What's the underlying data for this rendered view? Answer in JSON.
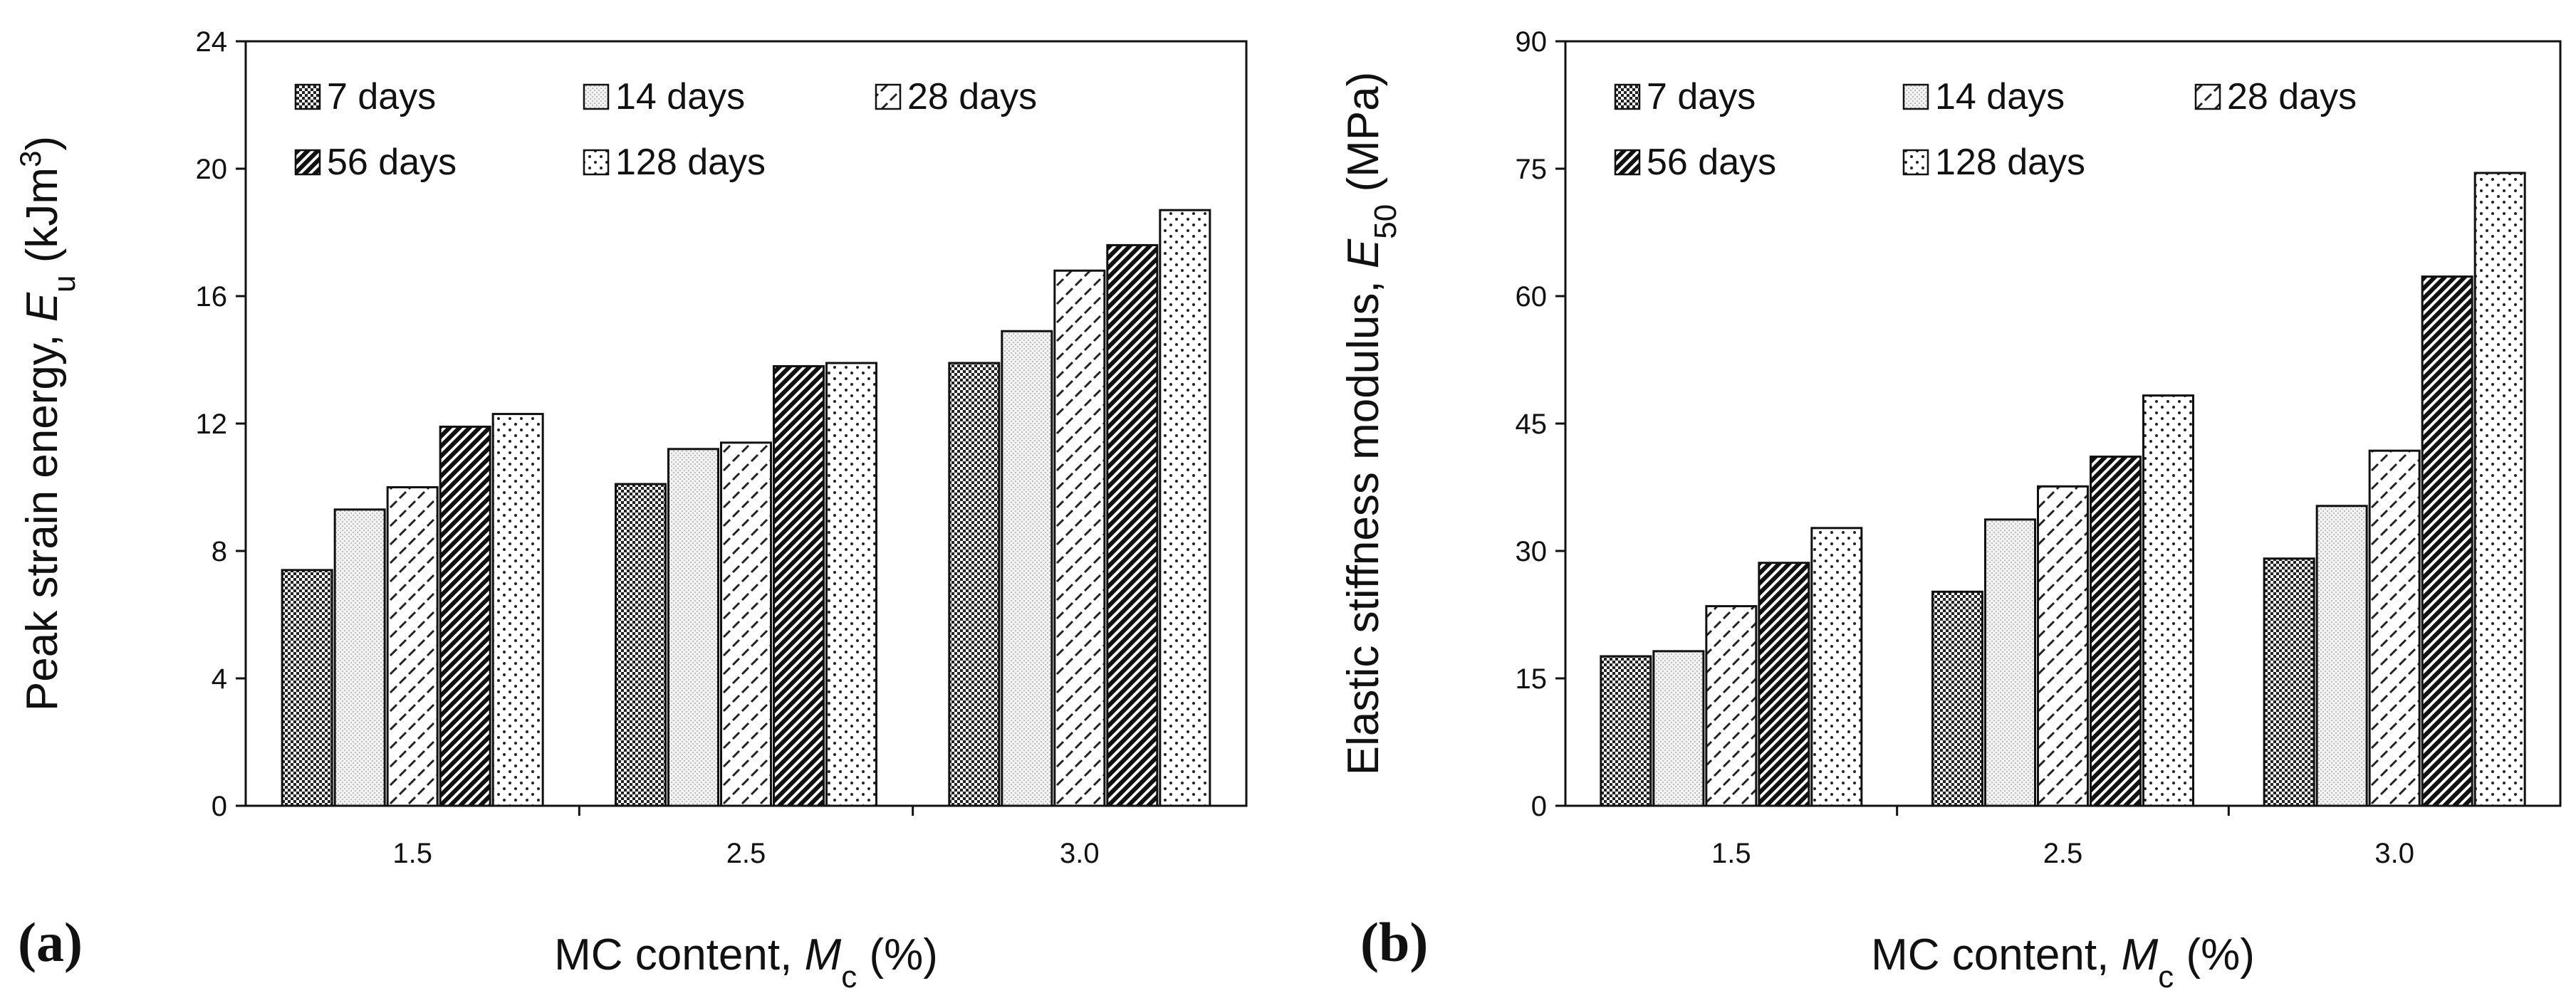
{
  "chart_data": [
    {
      "type": "bar",
      "panel_label": "(a)",
      "categories": [
        "1.5",
        "2.5",
        "3.0"
      ],
      "series": [
        {
          "name": "7 days",
          "values": [
            7.4,
            10.1,
            13.9
          ]
        },
        {
          "name": "14 days",
          "values": [
            9.3,
            11.2,
            14.9
          ]
        },
        {
          "name": "28 days",
          "values": [
            10.0,
            11.4,
            16.8
          ]
        },
        {
          "name": "56 days",
          "values": [
            11.9,
            13.8,
            17.6
          ]
        },
        {
          "name": "128 days",
          "values": [
            12.3,
            13.9,
            18.7
          ]
        }
      ],
      "ylim": [
        0,
        24
      ],
      "yticks": [
        "0",
        "4",
        "8",
        "12",
        "16",
        "20",
        "24"
      ],
      "ylabel": "Peak strain energy, E_u (kJm^3)",
      "ylabel_parts": {
        "main": "Peak strain energy, ",
        "sym": "E",
        "sub": "u",
        "unit_open": " (kJm",
        "sup": "3",
        "unit_close": ")"
      },
      "xlabel": "MC content, M_c (%)",
      "xlabel_parts": {
        "main": "MC content, ",
        "sym": "M",
        "sub": "c",
        "unit": " (%)"
      },
      "grid": false,
      "legend": "top-left"
    },
    {
      "type": "bar",
      "panel_label": "(b)",
      "categories": [
        "1.5",
        "2.5",
        "3.0"
      ],
      "series": [
        {
          "name": "7 days",
          "values": [
            17.6,
            25.2,
            29.1
          ]
        },
        {
          "name": "14 days",
          "values": [
            18.2,
            33.7,
            35.3
          ]
        },
        {
          "name": "28 days",
          "values": [
            23.5,
            37.6,
            41.8
          ]
        },
        {
          "name": "56 days",
          "values": [
            28.6,
            41.1,
            62.3
          ]
        },
        {
          "name": "128 days",
          "values": [
            32.7,
            48.3,
            74.5
          ]
        }
      ],
      "ylim": [
        0,
        90
      ],
      "yticks": [
        "0",
        "15",
        "30",
        "45",
        "60",
        "75",
        "90"
      ],
      "ylabel": "Elastic stiffness modulus, E_50 (MPa)",
      "ylabel_parts": {
        "main": "Elastic stiffness modulus, ",
        "sym": "E",
        "sub": "50",
        "unit_open": " (MPa)",
        "sup": "",
        "unit_close": ""
      },
      "xlabel": "MC content, M_c (%)",
      "xlabel_parts": {
        "main": "MC content, ",
        "sym": "M",
        "sub": "c",
        "unit": " (%)"
      },
      "grid": false,
      "legend": "top-left"
    }
  ]
}
